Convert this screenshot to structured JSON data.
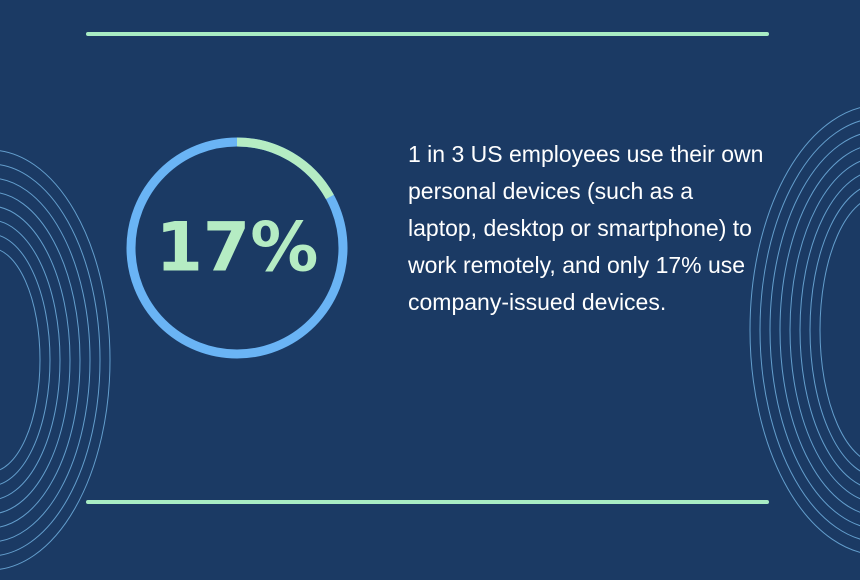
{
  "chart_data": {
    "type": "donut",
    "values": [
      17
    ],
    "value_labels": [
      "17%"
    ],
    "color": "#b5ecc3",
    "description": "1 in 3 US employees use their own personal devices (such as a laptop, desktop or smartphone) to work remotely, and only 17% use company-issued devices."
  }
}
